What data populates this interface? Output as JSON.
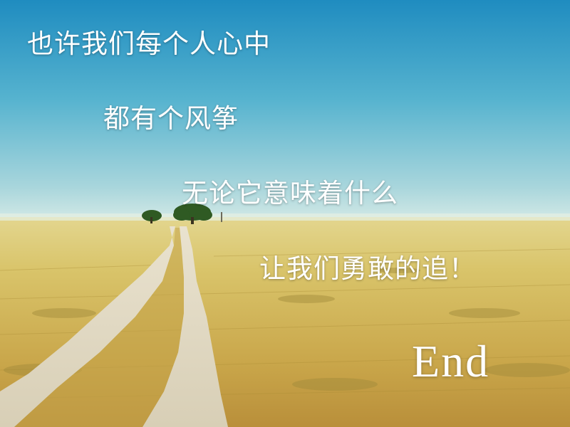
{
  "slide": {
    "lines": [
      "也许我们每个人心中",
      "都有个风筝",
      "无论它意味着什么",
      "让我们勇敢的追！"
    ],
    "end_label": "End"
  },
  "colors": {
    "sky_top": "#1f8cc0",
    "sky_horizon": "#d3e9e6",
    "grass": "#d9c46a",
    "text": "#ffffff"
  }
}
